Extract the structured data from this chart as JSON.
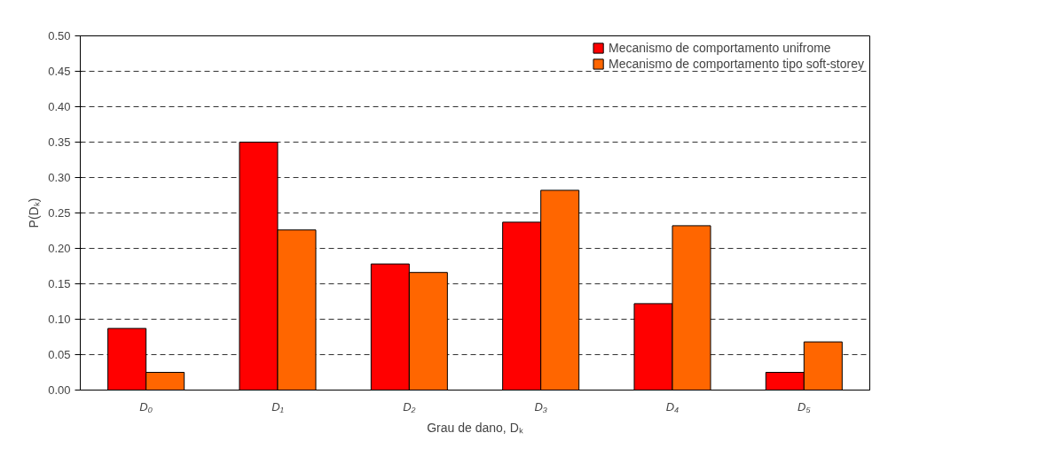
{
  "chart_data": {
    "type": "bar",
    "xlabel": "Grau de dano, Dₖ",
    "ylabel": "P(Dₖ)",
    "categories": [
      "D₀",
      "D₁",
      "D₂",
      "D₃",
      "D₄",
      "D₅"
    ],
    "series": [
      {
        "name": "Mecanismo de comportamento unifrome",
        "color": "#ff0000",
        "values": [
          0.087,
          0.35,
          0.178,
          0.237,
          0.122,
          0.025
        ]
      },
      {
        "name": "Mecanismo de comportamento tipo soft-storey",
        "color": "#ff6600",
        "values": [
          0.025,
          0.226,
          0.166,
          0.282,
          0.232,
          0.068
        ]
      }
    ],
    "ylim": [
      0,
      0.5
    ],
    "yticks": [
      {
        "value": 0,
        "label": "0.00"
      },
      {
        "value": 0.05,
        "label": "0.05"
      },
      {
        "value": 0.1,
        "label": "0.10"
      },
      {
        "value": 0.15,
        "label": "0.15"
      },
      {
        "value": 0.2,
        "label": "0.20"
      },
      {
        "value": 0.25,
        "label": "0.25"
      },
      {
        "value": 0.3,
        "label": "0.30"
      },
      {
        "value": 0.35,
        "label": "0.35"
      },
      {
        "value": 0.4,
        "label": "0.40"
      },
      {
        "value": 0.45,
        "label": "0.45"
      },
      {
        "value": 0.5,
        "label": "0.50"
      }
    ],
    "grid": "y",
    "legend": "top right"
  }
}
